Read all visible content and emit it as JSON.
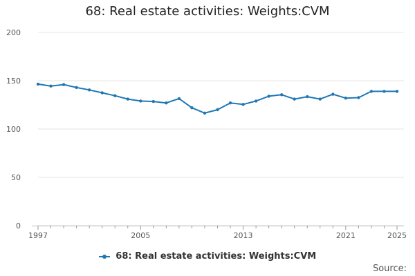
{
  "chart_data": {
    "type": "line",
    "title": "68: Real estate activities: Weights:CVM",
    "xlabel": "",
    "ylabel": "",
    "xlim": [
      1997,
      2025
    ],
    "ylim": [
      0,
      200
    ],
    "xticks": [
      1997,
      2005,
      2013,
      2021,
      2025
    ],
    "yticks": [
      0,
      50,
      100,
      150,
      200
    ],
    "grid": "horizontal",
    "legend_position": "bottom",
    "series": [
      {
        "name": "68: Real estate activities: Weights:CVM",
        "color": "#1f77b4",
        "x": [
          1997,
          1998,
          1999,
          2000,
          2001,
          2002,
          2003,
          2004,
          2005,
          2006,
          2007,
          2008,
          2009,
          2010,
          2011,
          2012,
          2013,
          2014,
          2015,
          2016,
          2017,
          2018,
          2019,
          2020,
          2021,
          2022,
          2023,
          2024,
          2025
        ],
        "values": [
          146.5,
          144.5,
          146,
          143,
          140.5,
          137.5,
          134.5,
          131,
          129,
          128.5,
          127,
          131.5,
          122,
          116.5,
          120,
          127,
          125.5,
          129,
          134,
          135.5,
          131,
          133.5,
          131,
          136,
          132,
          132.5,
          139,
          139,
          139
        ]
      }
    ]
  },
  "source_label": "Source:"
}
